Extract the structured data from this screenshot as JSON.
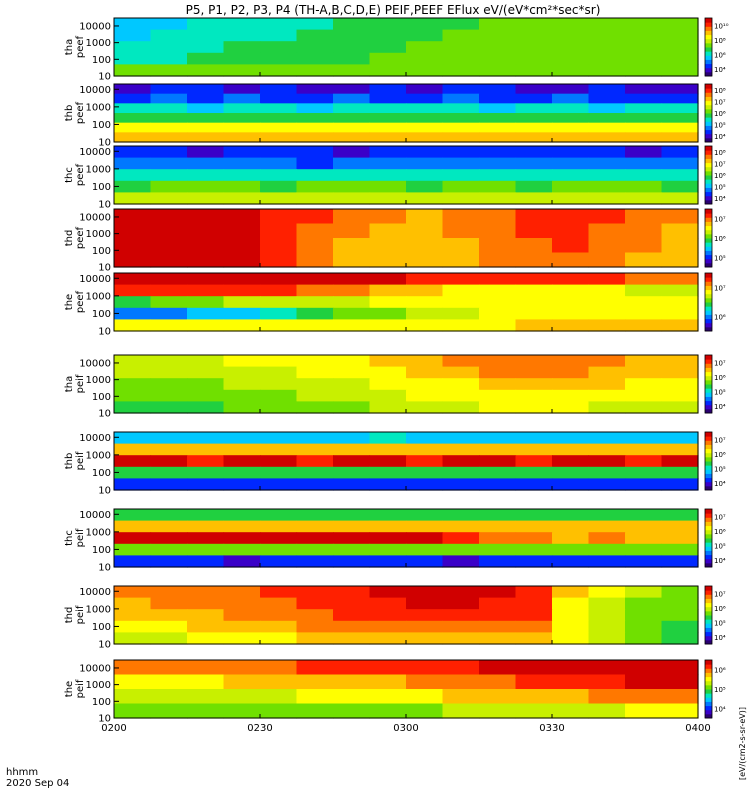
{
  "title": "P5, P1, P2, P3, P4 (TH-A,B,C,D,E) PEIF,PEEF EFlux eV/(eV*cm²*sec*sr)",
  "footer": {
    "line1": "hhmm",
    "line2": "2020 Sep 04"
  },
  "colorbar_label": "[eV/(cm2-s-sr-eV)]",
  "colors": {
    "scale": [
      "#2a0070",
      "#3a00c8",
      "#0028ff",
      "#0078ff",
      "#00c8ff",
      "#00e8c0",
      "#20d040",
      "#70e000",
      "#c8f000",
      "#ffff00",
      "#ffc000",
      "#ff7800",
      "#ff2000",
      "#d00000"
    ]
  },
  "chart_data": {
    "type": "heatmap",
    "x_ticks": [
      "0200",
      "0230",
      "0300",
      "0330",
      "0400"
    ],
    "xlim": [
      "0200",
      "0400"
    ],
    "y_scale": "log",
    "y_ticks": [
      10,
      100,
      1000,
      10000
    ],
    "panels": [
      {
        "ylabel": [
          "tha",
          "peef"
        ],
        "ylim": [
          10,
          30000
        ],
        "cb_ticks": [
          "10⁴",
          "10⁶",
          "10⁸",
          "10¹⁰"
        ],
        "values": [
          [
            4.0,
            4.3,
            4.5,
            4.8,
            5.0,
            5.3,
            5.6,
            5.8,
            6.1,
            6.3,
            6.6,
            6.8,
            6.9,
            7.0,
            7.0,
            7.1
          ],
          [
            4.2,
            4.6,
            4.8,
            5.0,
            5.3,
            5.5,
            5.8,
            6.0,
            6.3,
            6.5,
            6.7,
            6.8,
            6.9,
            7.0,
            7.1,
            7.1
          ],
          [
            4.6,
            5.0,
            5.3,
            5.5,
            5.8,
            6.0,
            6.2,
            6.4,
            6.6,
            6.7,
            6.8,
            6.9,
            7.0,
            7.0,
            7.1,
            7.2
          ],
          [
            5.0,
            5.3,
            5.6,
            5.8,
            6.0,
            6.2,
            6.4,
            6.6,
            6.7,
            6.8,
            6.9,
            7.0,
            7.0,
            7.1,
            7.1,
            7.2
          ],
          [
            6.5,
            6.7,
            6.8,
            6.9,
            7.0,
            7.0,
            7.1,
            7.1,
            7.2,
            7.2,
            7.2,
            7.3,
            7.3,
            7.3,
            7.3,
            7.3
          ]
        ]
      },
      {
        "ylabel": [
          "thb",
          "peef"
        ],
        "ylim": [
          10,
          20000
        ],
        "cb_ticks": [
          "10⁴",
          "10⁵",
          "10⁶",
          "10⁷",
          "10⁸"
        ],
        "values": [
          [
            1.2,
            1.5,
            1.8,
            1.3,
            1.6,
            0.9,
            1.4,
            1.7,
            1.2,
            1.5,
            1.8,
            1.1,
            0.8,
            1.6,
            1.3,
            1.4
          ],
          [
            2.2,
            2.5,
            2.3,
            2.6,
            2.4,
            2.1,
            2.5,
            2.3,
            2.2,
            2.6,
            2.4,
            2.0,
            2.5,
            2.3,
            2.4,
            2.2
          ],
          [
            4.5,
            4.6,
            4.4,
            4.6,
            4.5,
            4.4,
            4.7,
            4.5,
            4.6,
            4.5,
            4.4,
            4.6,
            4.5,
            4.4,
            4.6,
            4.5
          ],
          [
            6.2,
            6.3,
            6.2,
            6.4,
            6.2,
            6.3,
            6.2,
            6.3,
            6.4,
            6.2,
            6.3,
            6.2,
            6.3,
            6.2,
            6.3,
            6.2
          ],
          [
            8.6,
            8.6,
            8.7,
            8.6,
            8.7,
            8.6,
            8.6,
            8.7,
            8.6,
            8.6,
            8.7,
            8.6,
            8.6,
            8.7,
            8.6,
            8.6
          ],
          [
            9.6,
            9.6,
            9.7,
            9.6,
            9.6,
            9.7,
            9.6,
            9.6,
            9.7,
            9.6,
            9.6,
            9.7,
            9.6,
            9.6,
            9.7,
            9.6
          ]
        ]
      },
      {
        "ylabel": [
          "thc",
          "peef"
        ],
        "ylim": [
          10,
          20000
        ],
        "cb_ticks": [
          "10⁴",
          "10⁵",
          "10⁶",
          "10⁷",
          "10⁸"
        ],
        "values": [
          [
            1.5,
            1.8,
            1.4,
            2.0,
            1.6,
            1.9,
            1.3,
            1.7,
            2.0,
            1.5,
            1.8,
            1.6,
            2.1,
            1.7,
            1.4,
            1.8
          ],
          [
            2.6,
            2.8,
            2.5,
            2.9,
            2.7,
            2.4,
            2.8,
            2.6,
            3.0,
            2.7,
            2.5,
            2.8,
            2.6,
            2.9,
            2.7,
            2.6
          ],
          [
            4.6,
            4.8,
            4.7,
            4.9,
            4.6,
            4.8,
            4.7,
            4.9,
            4.8,
            4.7,
            4.9,
            4.8,
            4.6,
            4.8,
            4.7,
            4.8
          ],
          [
            6.4,
            6.5,
            6.5,
            6.6,
            6.4,
            6.5,
            6.6,
            6.5,
            6.4,
            6.6,
            6.5,
            6.4,
            6.5,
            6.6,
            6.5,
            6.4
          ],
          [
            8.2,
            8.3,
            8.2,
            8.3,
            8.2,
            8.3,
            8.2,
            8.3,
            8.2,
            8.3,
            8.2,
            8.3,
            8.2,
            8.3,
            8.2,
            8.3
          ]
        ]
      },
      {
        "ylabel": [
          "thd",
          "peef"
        ],
        "ylim": [
          10,
          30000
        ],
        "cb_ticks": [
          "10⁵",
          "10⁶",
          "10⁷"
        ],
        "values": [
          [
            12.8,
            12.9,
            12.7,
            12.9,
            12.2,
            11.5,
            10.8,
            10.5,
            10.3,
            10.8,
            11.4,
            11.8,
            12.0,
            11.6,
            11.0,
            10.5
          ],
          [
            12.7,
            12.8,
            12.7,
            12.8,
            12.0,
            11.3,
            10.6,
            10.3,
            10.2,
            10.6,
            11.2,
            11.6,
            11.8,
            11.4,
            10.8,
            10.4
          ],
          [
            12.6,
            12.7,
            12.6,
            12.7,
            11.8,
            11.1,
            10.4,
            10.1,
            10.0,
            10.4,
            11.0,
            11.4,
            11.6,
            11.2,
            10.6,
            10.2
          ],
          [
            12.5,
            12.6,
            12.5,
            12.6,
            11.6,
            10.9,
            10.3,
            10.0,
            9.9,
            10.3,
            10.8,
            11.2,
            11.4,
            11.0,
            10.4,
            10.0
          ]
        ]
      },
      {
        "ylabel": [
          "the",
          "peef"
        ],
        "ylim": [
          10,
          20000
        ],
        "cb_ticks": [
          "10⁶",
          "10⁷"
        ],
        "values": [
          [
            13.0,
            13.0,
            12.9,
            12.9,
            12.8,
            12.8,
            12.6,
            12.5,
            12.3,
            12.2,
            12.0,
            11.8,
            11.6,
            11.5,
            11.4,
            11.3
          ],
          [
            12.4,
            12.2,
            12.0,
            11.8,
            11.5,
            11.0,
            10.5,
            10.0,
            9.5,
            9.2,
            9.0,
            8.8,
            8.6,
            8.5,
            8.4,
            8.3
          ],
          [
            6.0,
            6.5,
            7.0,
            7.5,
            7.8,
            8.0,
            8.3,
            8.5,
            8.6,
            8.7,
            8.8,
            8.8,
            8.9,
            9.0,
            9.0,
            9.0
          ],
          [
            3.0,
            3.2,
            3.5,
            4.0,
            4.5,
            5.5,
            6.5,
            7.2,
            7.8,
            8.2,
            8.5,
            8.6,
            8.7,
            8.8,
            8.9,
            9.0
          ],
          [
            8.5,
            8.5,
            8.6,
            8.7,
            8.8,
            8.9,
            9.0,
            9.1,
            9.2,
            9.3,
            9.4,
            9.5,
            9.6,
            9.7,
            9.8,
            9.8
          ]
        ]
      },
      {
        "ylabel": [
          "tha",
          "peif"
        ],
        "ylim": [
          10,
          30000
        ],
        "cb_ticks": [
          "10⁴",
          "10⁵",
          "10⁶",
          "10⁷"
        ],
        "values": [
          [
            8.0,
            8.2,
            8.4,
            8.6,
            8.8,
            9.0,
            9.3,
            9.6,
            10.0,
            10.5,
            11.0,
            11.3,
            11.0,
            10.6,
            10.3,
            10.0
          ],
          [
            7.6,
            7.8,
            8.0,
            8.2,
            8.4,
            8.6,
            8.9,
            9.2,
            9.6,
            10.0,
            10.5,
            10.8,
            10.6,
            10.3,
            10.0,
            9.7
          ],
          [
            7.0,
            7.2,
            7.4,
            7.6,
            7.8,
            8.0,
            8.3,
            8.6,
            9.0,
            9.4,
            9.8,
            10.0,
            9.9,
            9.6,
            9.3,
            9.0
          ],
          [
            6.5,
            6.7,
            6.9,
            7.1,
            7.3,
            7.5,
            7.8,
            8.1,
            8.5,
            8.9,
            9.2,
            9.3,
            9.2,
            9.0,
            8.7,
            8.5
          ],
          [
            6.0,
            6.2,
            6.4,
            6.6,
            6.8,
            7.0,
            7.3,
            7.6,
            8.0,
            8.4,
            8.5,
            8.6,
            8.5,
            8.3,
            8.0,
            7.8
          ]
        ]
      },
      {
        "ylabel": [
          "thb",
          "peif"
        ],
        "ylim": [
          10,
          20000
        ],
        "cb_ticks": [
          "10⁴",
          "10⁵",
          "10⁶",
          "10⁷"
        ],
        "values": [
          [
            4.0,
            4.2,
            4.4,
            4.1,
            4.3,
            4.0,
            4.2,
            4.5,
            4.1,
            4.3,
            4.0,
            4.2,
            4.4,
            4.1,
            4.3,
            4.2
          ],
          [
            9.6,
            10.0,
            9.8,
            10.0,
            9.7,
            9.9,
            9.6,
            9.8,
            9.7,
            9.9,
            9.6,
            9.8,
            9.7,
            9.9,
            9.6,
            9.8
          ],
          [
            12.5,
            12.6,
            12.4,
            12.6,
            12.5,
            12.4,
            12.6,
            12.5,
            12.4,
            12.6,
            12.5,
            12.4,
            12.6,
            12.5,
            12.4,
            12.5
          ],
          [
            6.0,
            6.4,
            6.2,
            6.0,
            6.4,
            6.2,
            6.1,
            6.3,
            6.0,
            6.2,
            6.4,
            6.1,
            6.3,
            6.0,
            6.2,
            6.1
          ],
          [
            2.0,
            2.3,
            2.1,
            1.8,
            2.4,
            2.0,
            2.2,
            1.9,
            2.3,
            2.1,
            1.8,
            2.2,
            2.0,
            2.3,
            1.9,
            2.1
          ]
        ]
      },
      {
        "ylabel": [
          "thc",
          "peif"
        ],
        "ylim": [
          10,
          20000
        ],
        "cb_ticks": [
          "10⁴",
          "10⁵",
          "10⁶",
          "10⁷"
        ],
        "values": [
          [
            5.5,
            5.7,
            5.6,
            5.8,
            5.6,
            5.7,
            5.5,
            5.7,
            5.8,
            5.6,
            5.5,
            5.7,
            5.6,
            5.8,
            5.7,
            5.6
          ],
          [
            9.5,
            9.6,
            9.7,
            9.6,
            9.5,
            9.7,
            9.6,
            9.5,
            9.7,
            9.6,
            9.5,
            9.6,
            9.7,
            9.6,
            9.5,
            9.6
          ],
          [
            12.6,
            12.7,
            12.6,
            12.5,
            12.7,
            12.6,
            12.5,
            12.6,
            12.7,
            11.8,
            11.0,
            10.6,
            10.3,
            10.5,
            10.4,
            10.2
          ],
          [
            7.0,
            7.2,
            6.8,
            7.1,
            6.9,
            7.2,
            7.0,
            6.8,
            7.1,
            6.9,
            7.0,
            7.2,
            6.8,
            7.1,
            6.9,
            7.0
          ],
          [
            1.5,
            1.8,
            1.6,
            1.4,
            1.9,
            1.6,
            1.5,
            1.8,
            1.6,
            1.4,
            1.7,
            1.6,
            1.5,
            1.8,
            1.6,
            1.5
          ]
        ]
      },
      {
        "ylabel": [
          "thd",
          "peif"
        ],
        "ylim": [
          10,
          20000
        ],
        "cb_ticks": [
          "10⁴",
          "10⁵",
          "10⁶",
          "10⁷"
        ],
        "values": [
          [
            10.5,
            10.8,
            11.0,
            11.3,
            11.6,
            11.9,
            12.2,
            12.6,
            12.9,
            12.8,
            12.5,
            12.0,
            9.5,
            8.5,
            7.5,
            7.0
          ],
          [
            10.2,
            10.5,
            10.8,
            11.0,
            11.4,
            11.7,
            12.0,
            12.3,
            12.6,
            12.5,
            12.2,
            11.8,
            9.4,
            8.4,
            7.4,
            6.8
          ],
          [
            9.8,
            10.1,
            10.4,
            10.7,
            11.0,
            11.3,
            11.6,
            11.9,
            12.2,
            12.1,
            11.8,
            11.5,
            9.2,
            8.2,
            7.2,
            6.6
          ],
          [
            9.0,
            9.3,
            9.6,
            9.9,
            10.2,
            10.5,
            10.8,
            11.1,
            11.4,
            11.3,
            11.0,
            10.8,
            9.0,
            8.0,
            7.0,
            6.4
          ],
          [
            8.0,
            8.3,
            8.6,
            8.9,
            9.2,
            9.5,
            9.8,
            10.1,
            10.4,
            10.3,
            10.0,
            9.8,
            8.7,
            7.8,
            6.8,
            6.2
          ]
        ]
      },
      {
        "ylabel": [
          "the",
          "peif"
        ],
        "ylim": [
          10,
          30000
        ],
        "cb_ticks": [
          "10⁴",
          "10⁵",
          "10⁶"
        ],
        "values": [
          [
            10.5,
            10.7,
            10.9,
            11.1,
            11.3,
            11.5,
            11.7,
            11.9,
            12.1,
            12.3,
            12.5,
            12.7,
            12.9,
            13.0,
            13.1,
            13.2
          ],
          [
            9.0,
            9.2,
            9.4,
            9.6,
            9.8,
            10.0,
            10.2,
            10.4,
            10.7,
            11.0,
            11.3,
            11.6,
            11.9,
            12.2,
            12.5,
            12.8
          ],
          [
            7.5,
            7.7,
            7.9,
            8.1,
            8.3,
            8.5,
            8.7,
            8.9,
            9.2,
            9.5,
            9.8,
            10.1,
            10.4,
            10.7,
            11.0,
            11.3
          ],
          [
            6.5,
            6.6,
            6.7,
            6.8,
            6.9,
            7.0,
            7.1,
            7.2,
            7.4,
            7.6,
            7.8,
            8.0,
            8.2,
            8.4,
            8.6,
            8.8
          ]
        ]
      }
    ]
  }
}
